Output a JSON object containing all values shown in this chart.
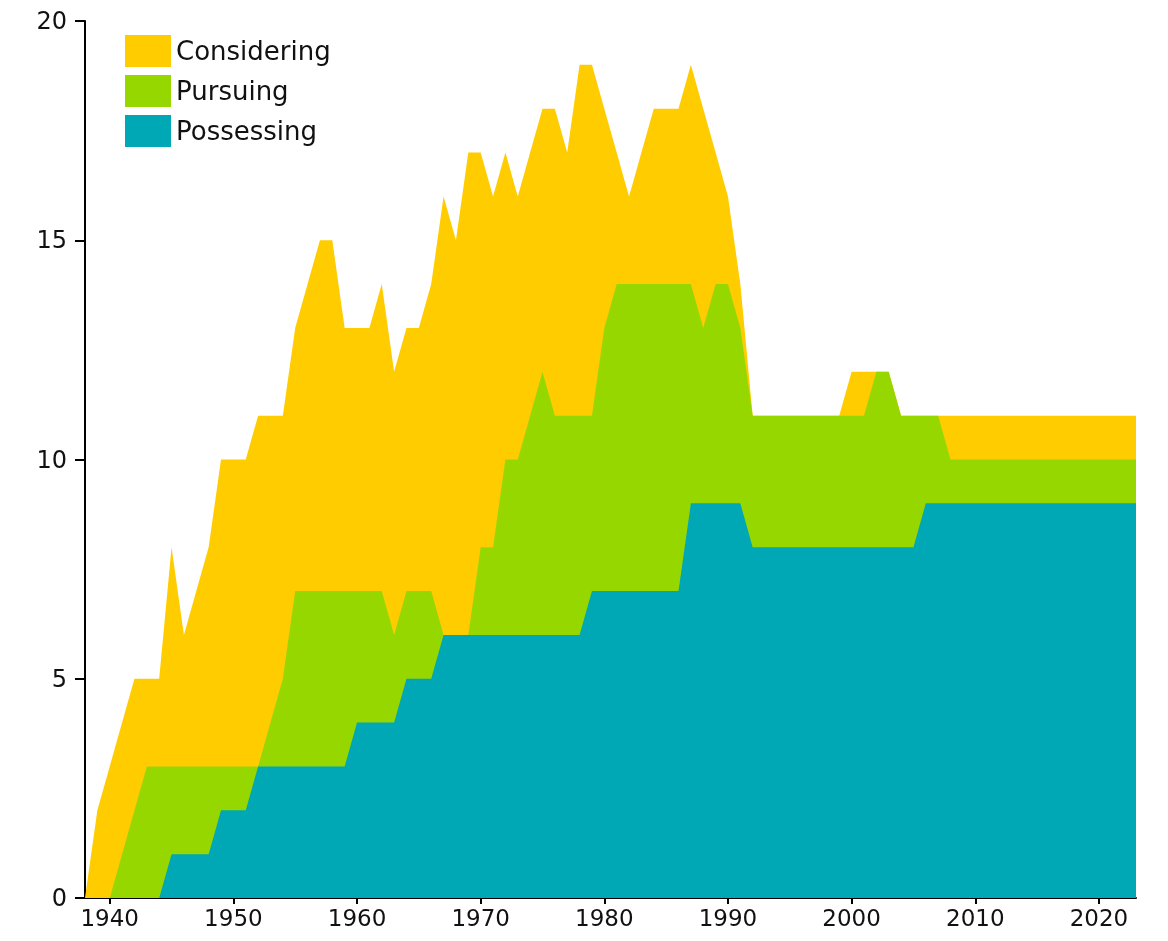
{
  "chart_data": {
    "type": "area",
    "stacked": true,
    "legend": "top left",
    "grid": false,
    "x": [
      1938,
      1939,
      1940,
      1941,
      1942,
      1943,
      1944,
      1945,
      1946,
      1947,
      1948,
      1949,
      1950,
      1951,
      1952,
      1953,
      1954,
      1955,
      1956,
      1957,
      1958,
      1959,
      1960,
      1961,
      1962,
      1963,
      1964,
      1965,
      1966,
      1967,
      1968,
      1969,
      1970,
      1971,
      1972,
      1973,
      1974,
      1975,
      1976,
      1977,
      1978,
      1979,
      1980,
      1981,
      1982,
      1983,
      1984,
      1985,
      1986,
      1987,
      1988,
      1989,
      1990,
      1991,
      1992,
      1993,
      1994,
      1995,
      1996,
      1997,
      1998,
      1999,
      2000,
      2001,
      2002,
      2003,
      2004,
      2005,
      2006,
      2007,
      2008,
      2009,
      2010,
      2011,
      2012,
      2013,
      2014,
      2015,
      2016,
      2017,
      2018,
      2019,
      2020,
      2021,
      2022,
      2023
    ],
    "xlim": [
      1938,
      2023
    ],
    "xticks": [
      1940,
      1950,
      1960,
      1970,
      1980,
      1990,
      2000,
      2010,
      2020
    ],
    "ylim": [
      0,
      20
    ],
    "yticks": [
      0,
      5,
      10,
      15,
      20
    ],
    "series": [
      {
        "name": "Possessing",
        "color": "#00a8b5",
        "values": [
          0,
          0,
          0,
          0,
          0,
          0,
          0,
          1,
          1,
          1,
          1,
          2,
          2,
          2,
          3,
          3,
          3,
          3,
          3,
          3,
          3,
          3,
          4,
          4,
          4,
          4,
          5,
          5,
          5,
          6,
          6,
          6,
          6,
          6,
          6,
          6,
          6,
          6,
          6,
          6,
          6,
          7,
          7,
          7,
          7,
          7,
          7,
          7,
          7,
          9,
          9,
          9,
          9,
          9,
          8,
          8,
          8,
          8,
          8,
          8,
          8,
          8,
          8,
          8,
          8,
          8,
          8,
          8,
          9,
          9,
          9,
          9,
          9,
          9,
          9,
          9,
          9,
          9,
          9,
          9,
          9,
          9,
          9,
          9,
          9,
          9
        ]
      },
      {
        "name": "Pursuing",
        "color": "#97d700",
        "values": [
          0,
          0,
          0,
          1,
          2,
          3,
          3,
          2,
          2,
          2,
          2,
          1,
          1,
          1,
          0,
          1,
          2,
          4,
          4,
          4,
          4,
          4,
          3,
          3,
          3,
          2,
          2,
          2,
          2,
          0,
          0,
          0,
          2,
          2,
          4,
          4,
          5,
          6,
          5,
          5,
          5,
          4,
          6,
          7,
          7,
          7,
          7,
          7,
          7,
          5,
          4,
          5,
          5,
          4,
          3,
          3,
          3,
          3,
          3,
          3,
          3,
          3,
          3,
          3,
          4,
          4,
          3,
          3,
          2,
          2,
          1,
          1,
          1,
          1,
          1,
          1,
          1,
          1,
          1,
          1,
          1,
          1,
          1,
          1,
          1,
          1
        ]
      },
      {
        "name": "Considering",
        "color": "#ffcc00",
        "values": [
          0,
          2,
          3,
          3,
          3,
          2,
          2,
          5,
          3,
          4,
          5,
          7,
          7,
          7,
          8,
          7,
          6,
          6,
          7,
          8,
          8,
          6,
          6,
          6,
          7,
          6,
          6,
          6,
          7,
          10,
          9,
          11,
          9,
          8,
          7,
          6,
          6,
          6,
          7,
          6,
          8,
          8,
          5,
          3,
          2,
          3,
          4,
          4,
          4,
          5,
          5,
          3,
          2,
          1,
          0,
          0,
          0,
          0,
          0,
          0,
          0,
          0,
          1,
          1,
          0,
          0,
          0,
          0,
          0,
          0,
          1,
          1,
          1,
          1,
          1,
          1,
          1,
          1,
          1,
          1,
          1,
          1,
          1,
          1,
          1,
          1
        ]
      }
    ]
  }
}
